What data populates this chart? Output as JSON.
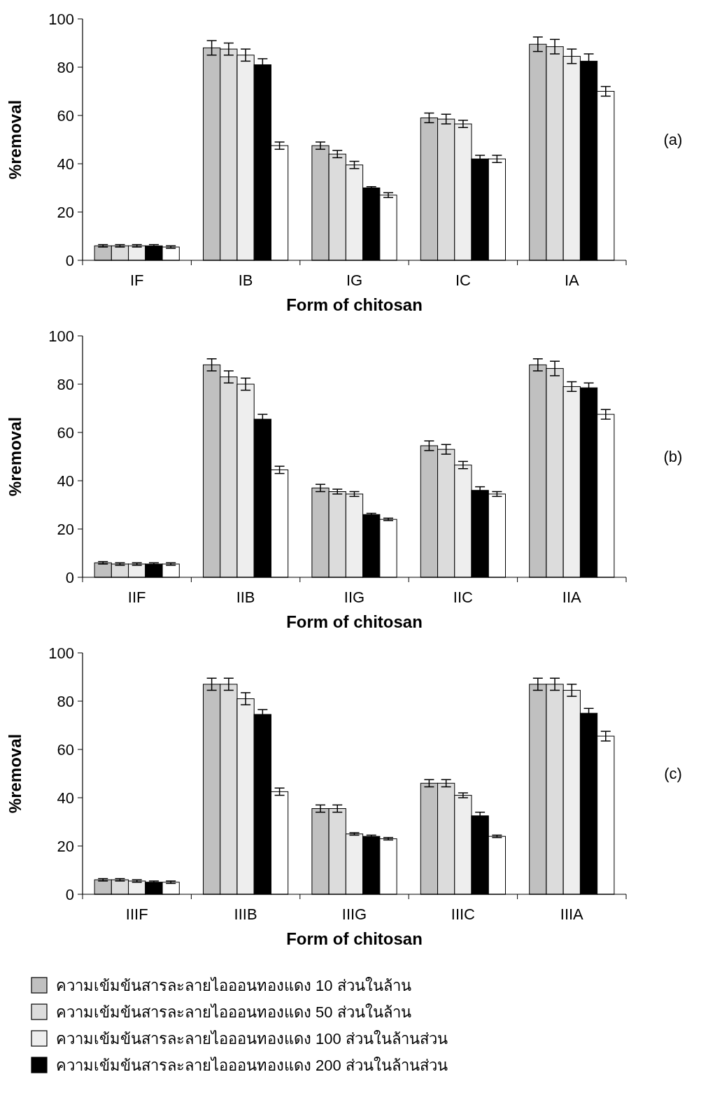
{
  "chart_data": [
    {
      "type": "bar",
      "xlabel": "Form of chitosan",
      "ylabel": "%removal",
      "annotations": [
        "(a)"
      ],
      "categories": [
        "IF",
        "IB",
        "IG",
        "IC",
        "IA"
      ],
      "ylim": [
        0,
        100
      ],
      "yticks": [
        0,
        20,
        40,
        60,
        80,
        100
      ],
      "grid": false,
      "series": [
        {
          "color": "#c0c0c0",
          "values": [
            6,
            88,
            47.5,
            59,
            89.5
          ],
          "errors": [
            0.5,
            3,
            1.5,
            2,
            3
          ]
        },
        {
          "color": "#dcdcdc",
          "values": [
            6,
            87.5,
            44,
            58.5,
            88.5
          ],
          "errors": [
            0.5,
            2.5,
            1.5,
            2,
            3
          ]
        },
        {
          "color": "#eeeeee",
          "values": [
            6,
            85,
            39.5,
            56.5,
            84.5
          ],
          "errors": [
            0.5,
            2.5,
            1.5,
            1.5,
            3
          ]
        },
        {
          "color": "#000000",
          "values": [
            6,
            81,
            30,
            42,
            82.5
          ],
          "errors": [
            0.5,
            2.5,
            0.5,
            1.5,
            3
          ]
        },
        {
          "color": "#ffffff",
          "values": [
            5.5,
            47.5,
            27,
            42,
            70
          ],
          "errors": [
            0.5,
            1.5,
            1,
            1.5,
            2
          ]
        }
      ]
    },
    {
      "type": "bar",
      "xlabel": "Form of chitosan",
      "ylabel": "%removal",
      "annotations": [
        "(b)"
      ],
      "categories": [
        "IIF",
        "IIB",
        "IIG",
        "IIC",
        "IIA"
      ],
      "ylim": [
        0,
        100
      ],
      "yticks": [
        0,
        20,
        40,
        60,
        80,
        100
      ],
      "grid": false,
      "series": [
        {
          "color": "#c0c0c0",
          "values": [
            6,
            88,
            37,
            54.5,
            88
          ],
          "errors": [
            0.5,
            2.5,
            1.5,
            2,
            2.5
          ]
        },
        {
          "color": "#dcdcdc",
          "values": [
            5.5,
            83,
            35.5,
            53,
            86.5
          ],
          "errors": [
            0.5,
            2.5,
            1,
            2,
            3
          ]
        },
        {
          "color": "#eeeeee",
          "values": [
            5.5,
            80,
            34.5,
            46.5,
            79
          ],
          "errors": [
            0.5,
            2.5,
            1,
            1.5,
            2
          ]
        },
        {
          "color": "#000000",
          "values": [
            5.5,
            65.5,
            26,
            36,
            78.5
          ],
          "errors": [
            0.5,
            2,
            0.5,
            1.5,
            2
          ]
        },
        {
          "color": "#ffffff",
          "values": [
            5.5,
            44.5,
            24,
            34.5,
            67.5
          ],
          "errors": [
            0.5,
            1.5,
            0.5,
            1,
            2
          ]
        }
      ]
    },
    {
      "type": "bar",
      "xlabel": "Form of chitosan",
      "ylabel": "%removal",
      "annotations": [
        "(c)"
      ],
      "categories": [
        "IIIF",
        "IIIB",
        "IIIG",
        "IIIC",
        "IIIA"
      ],
      "ylim": [
        0,
        100
      ],
      "yticks": [
        0,
        20,
        40,
        60,
        80,
        100
      ],
      "grid": false,
      "legend": "bottom",
      "series": [
        {
          "name": "ความเข้มข้นสารละลายไอออนทองแดง 10 ส่วนในล้าน",
          "color": "#c0c0c0",
          "values": [
            6,
            87,
            35.5,
            46,
            87
          ],
          "errors": [
            0.5,
            2.5,
            1.5,
            1.5,
            2.5
          ]
        },
        {
          "name": "ความเข้มข้นสารละลายไอออนทองแดง 50 ส่วนในล้าน",
          "color": "#dcdcdc",
          "values": [
            6,
            87,
            35.5,
            46,
            87
          ],
          "errors": [
            0.5,
            2.5,
            1.5,
            1.5,
            2.5
          ]
        },
        {
          "name": "ความเข้มข้นสารละลายไอออนทองแดง 100 ส่วนในล้านส่วน",
          "color": "#eeeeee",
          "values": [
            5.5,
            81,
            25,
            41,
            84.5
          ],
          "errors": [
            0.5,
            2.5,
            0.5,
            1,
            2.5
          ]
        },
        {
          "name": "ความเข้มข้นสารละลายไอออนทองแดง 200 ส่วนในล้านส่วน",
          "color": "#000000",
          "values": [
            5,
            74.5,
            24,
            32.5,
            75
          ],
          "errors": [
            0.5,
            2,
            0.5,
            1.5,
            2
          ]
        },
        {
          "color": "#ffffff",
          "values": [
            5,
            42.5,
            23,
            24,
            65.5
          ],
          "errors": [
            0.5,
            1.5,
            0.5,
            0.5,
            2
          ]
        }
      ]
    }
  ]
}
